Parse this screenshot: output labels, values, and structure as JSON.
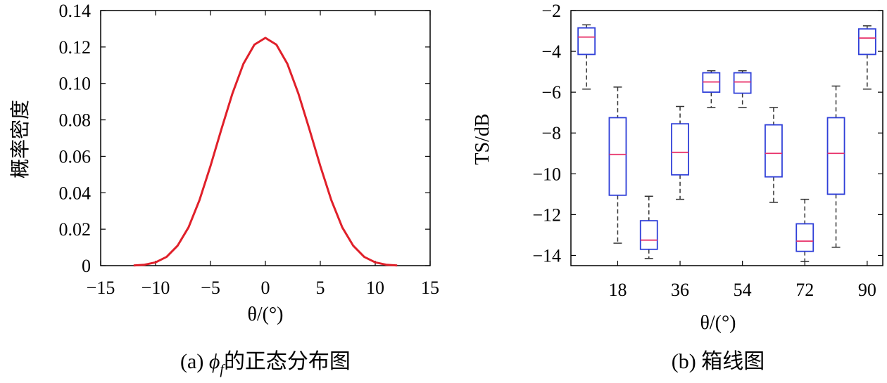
{
  "chart_data": [
    {
      "type": "line",
      "caption": "(a) ϕf的正态分布图",
      "caption_prefix": "(a) ",
      "caption_symbol": "ϕ",
      "caption_subscript": "f",
      "caption_suffix": "的正态分布图",
      "xlabel": "θ/(°)",
      "ylabel": "概率密度",
      "xlim": [
        -15,
        15
      ],
      "ylim": [
        0,
        0.14
      ],
      "xticks": [
        -15,
        -10,
        -5,
        0,
        5,
        10,
        15
      ],
      "xtick_labels": [
        "−15",
        "−10",
        "−5",
        "0",
        "5",
        "10",
        "15"
      ],
      "yticks": [
        0,
        0.02,
        0.04,
        0.06,
        0.08,
        0.1,
        0.12,
        0.14
      ],
      "ytick_labels": [
        "0",
        "0.02",
        "0.04",
        "0.06",
        "0.08",
        "0.10",
        "0.12",
        "0.14"
      ],
      "series": [
        {
          "color": "#e0202a",
          "x": [
            -12,
            -11,
            -10,
            -9,
            -8,
            -7,
            -6,
            -5,
            -4,
            -3,
            -2,
            -1,
            0,
            1,
            2,
            3,
            4,
            5,
            6,
            7,
            8,
            9,
            10,
            11,
            12
          ],
          "y": [
            0.0001,
            0.0005,
            0.0018,
            0.0048,
            0.0109,
            0.021,
            0.036,
            0.0547,
            0.075,
            0.0945,
            0.1108,
            0.1213,
            0.125,
            0.1213,
            0.1108,
            0.0945,
            0.075,
            0.0547,
            0.036,
            0.021,
            0.0109,
            0.0048,
            0.0018,
            0.0005,
            0.0001
          ]
        }
      ],
      "grid": false
    },
    {
      "type": "box",
      "caption": "(b) 箱线图",
      "xlabel": "θ/(°)",
      "ylabel": "TS/dB",
      "ylim": [
        -14.5,
        -2
      ],
      "yticks": [
        -14,
        -12,
        -10,
        -8,
        -6,
        -4,
        -2
      ],
      "ytick_labels": [
        "−14",
        "−12",
        "−10",
        "−8",
        "−6",
        "−4",
        "−2"
      ],
      "xticks": [
        18,
        36,
        54,
        72,
        90
      ],
      "xtick_labels": [
        "18",
        "36",
        "54",
        "72",
        "90"
      ],
      "xlim": [
        4.5,
        94.5
      ],
      "box_color": "#2f3fd8",
      "median_color": "#e8336b",
      "whisker_color": "#333333",
      "boxes": [
        {
          "x": 9,
          "whislo": -5.85,
          "q1": -4.15,
          "med": -3.3,
          "q3": -2.85,
          "whishi": -2.7
        },
        {
          "x": 18,
          "whislo": -13.4,
          "q1": -11.05,
          "med": -9.05,
          "q3": -7.25,
          "whishi": -5.75
        },
        {
          "x": 27,
          "whislo": -14.15,
          "q1": -13.7,
          "med": -13.25,
          "q3": -12.3,
          "whishi": -11.1
        },
        {
          "x": 36,
          "whislo": -11.25,
          "q1": -10.05,
          "med": -8.95,
          "q3": -7.55,
          "whishi": -6.7
        },
        {
          "x": 45,
          "whislo": -6.75,
          "q1": -6.0,
          "med": -5.5,
          "q3": -5.05,
          "whishi": -4.95
        },
        {
          "x": 54,
          "whislo": -6.75,
          "q1": -6.05,
          "med": -5.5,
          "q3": -5.05,
          "whishi": -4.95
        },
        {
          "x": 63,
          "whislo": -11.4,
          "q1": -10.15,
          "med": -9.0,
          "q3": -7.6,
          "whishi": -6.75
        },
        {
          "x": 72,
          "whislo": -14.3,
          "q1": -13.8,
          "med": -13.3,
          "q3": -12.45,
          "whishi": -11.25
        },
        {
          "x": 81,
          "whislo": -13.6,
          "q1": -11.0,
          "med": -9.0,
          "q3": -7.25,
          "whishi": -5.7
        },
        {
          "x": 90,
          "whislo": -5.85,
          "q1": -4.15,
          "med": -3.35,
          "q3": -2.9,
          "whishi": -2.75
        }
      ],
      "grid": false
    }
  ]
}
